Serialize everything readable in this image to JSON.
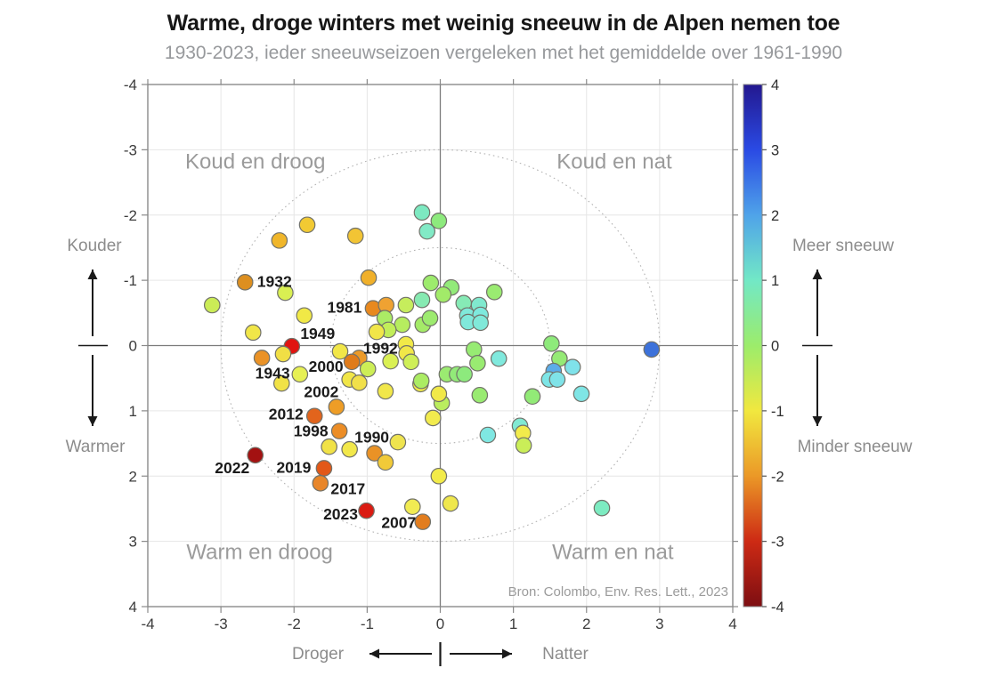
{
  "header": {
    "title": "Warme, droge winters met weinig sneeuw in de Alpen nemen toe",
    "subtitle": "1930-2023, ieder sneeuwseizoen vergeleken met het gemiddelde over 1961-1990"
  },
  "chart_data": {
    "type": "scatter",
    "title": "Warme, droge winters met weinig sneeuw in de Alpen nemen toe",
    "subtitle": "1930-2023, ieder sneeuwseizoen vergeleken met het gemiddelde over 1961-1990",
    "source": "Bron: Colombo, Env. Res. Lett., 2023",
    "x_range": [
      -4,
      4
    ],
    "y_range": [
      -4,
      4
    ],
    "y_axis_top_value": -4,
    "grid": true,
    "zero_lines": true,
    "reference_circle_radii": [
      1.5,
      3
    ],
    "x_ticks": [
      -4,
      -3,
      -2,
      -1,
      0,
      1,
      2,
      3,
      4
    ],
    "y_ticks": [
      -4,
      -3,
      -2,
      -1,
      0,
      1,
      2,
      3,
      4
    ],
    "quadrants": [
      {
        "text": "Koud en droog",
        "x": -2.53,
        "y": -2.82
      },
      {
        "text": "Koud en nat",
        "x": 2.38,
        "y": -2.82
      },
      {
        "text": "Warm en droog",
        "x": -2.47,
        "y": 3.16
      },
      {
        "text": "Warm en nat",
        "x": 2.36,
        "y": 3.16
      }
    ],
    "axis_annotations": {
      "y_top": "Kouder",
      "y_bottom": "Warmer",
      "x_left": "Droger",
      "x_right": "Natter",
      "cbar_top": "Meer sneeuw",
      "cbar_bottom": "Minder sneeuw"
    },
    "colorbar": {
      "ticks": [
        4,
        3,
        2,
        1,
        0,
        -1,
        -2,
        -3,
        -4
      ],
      "stops": [
        {
          "v": 4,
          "c": "#23188f"
        },
        {
          "v": 3,
          "c": "#2a4ae4"
        },
        {
          "v": 2,
          "c": "#4fa3e9"
        },
        {
          "v": 1,
          "c": "#72e8c6"
        },
        {
          "v": 0,
          "c": "#9cec6b"
        },
        {
          "v": -1,
          "c": "#f1e83f"
        },
        {
          "v": -2,
          "c": "#eb9827"
        },
        {
          "v": -3,
          "c": "#cd2a14"
        },
        {
          "v": -4,
          "c": "#7d0e12"
        }
      ]
    },
    "points": [
      {
        "x": -2.67,
        "y": -0.97,
        "c": "#dd8f1f",
        "label": "1932",
        "lx": 33,
        "ly": -1
      },
      {
        "x": -2.03,
        "y": 0.01,
        "c": "#e01410",
        "label": "1949",
        "lx": 29,
        "ly": -14
      },
      {
        "x": -2.44,
        "y": 0.19,
        "c": "#ea9226",
        "label": "1943",
        "lx": 12,
        "ly": 17
      },
      {
        "x": -0.92,
        "y": -0.57,
        "c": "#e8891f",
        "label": "1981",
        "lx": -32,
        "ly": -1
      },
      {
        "x": -1.11,
        "y": 0.19,
        "c": "#ec9a28",
        "label": "1992",
        "lx": 24,
        "ly": -11
      },
      {
        "x": -1.21,
        "y": 0.25,
        "c": "#e07b1a",
        "label": "2000",
        "lx": -29,
        "ly": 5
      },
      {
        "x": -1.42,
        "y": 0.94,
        "c": "#ee9d26",
        "label": "2002",
        "lx": -17,
        "ly": -17
      },
      {
        "x": -1.72,
        "y": 1.08,
        "c": "#e2641c",
        "label": "2012",
        "lx": -32,
        "ly": -2
      },
      {
        "x": -1.38,
        "y": 1.31,
        "c": "#ec8d26",
        "label": "1998",
        "lx": -32,
        "ly": 0
      },
      {
        "x": -0.9,
        "y": 1.65,
        "c": "#ea9226",
        "label": "1990",
        "lx": -3,
        "ly": -18
      },
      {
        "x": -2.53,
        "y": 1.68,
        "c": "#a31111",
        "label": "2022",
        "lx": -26,
        "ly": 14
      },
      {
        "x": -1.59,
        "y": 1.88,
        "c": "#e25818",
        "label": "2019",
        "lx": -34,
        "ly": -1
      },
      {
        "x": -1.64,
        "y": 2.11,
        "c": "#e8862a",
        "label": "2017",
        "lx": 31,
        "ly": 6
      },
      {
        "x": -1.01,
        "y": 2.53,
        "c": "#da1b12",
        "label": "2023",
        "lx": -29,
        "ly": 4
      },
      {
        "x": -0.24,
        "y": 2.7,
        "c": "#e27d1e",
        "label": "2007",
        "lx": -27,
        "ly": 1
      },
      {
        "x": -1.82,
        "y": -1.85,
        "c": "#f2ca33"
      },
      {
        "x": -2.2,
        "y": -1.61,
        "c": "#f0b62a"
      },
      {
        "x": -1.16,
        "y": -1.68,
        "c": "#f2c434"
      },
      {
        "x": -0.98,
        "y": -1.04,
        "c": "#f0b02a"
      },
      {
        "x": -2.12,
        "y": -0.81,
        "c": "#d9ef52"
      },
      {
        "x": -3.12,
        "y": -0.62,
        "c": "#cbec56"
      },
      {
        "x": -1.86,
        "y": -0.46,
        "c": "#f1e946"
      },
      {
        "x": -2.56,
        "y": -0.2,
        "c": "#f1e648"
      },
      {
        "x": -2.15,
        "y": 0.13,
        "c": "#f1df45"
      },
      {
        "x": -1.92,
        "y": 0.44,
        "c": "#e7f054"
      },
      {
        "x": -2.17,
        "y": 0.58,
        "c": "#f1e246"
      },
      {
        "x": -1.37,
        "y": 0.09,
        "c": "#f1e648"
      },
      {
        "x": -1.24,
        "y": 0.52,
        "c": "#f1e648"
      },
      {
        "x": -1.11,
        "y": 0.57,
        "c": "#f1e04a"
      },
      {
        "x": -0.99,
        "y": 0.36,
        "c": "#cdee56"
      },
      {
        "x": -0.75,
        "y": 0.7,
        "c": "#f1e74a"
      },
      {
        "x": -0.27,
        "y": 0.59,
        "c": "#f1ea48"
      },
      {
        "x": -0.1,
        "y": 1.11,
        "c": "#f2eb4e"
      },
      {
        "x": -1.52,
        "y": 1.55,
        "c": "#f1e247"
      },
      {
        "x": -1.24,
        "y": 1.59,
        "c": "#f2e84b"
      },
      {
        "x": -0.75,
        "y": 1.79,
        "c": "#f1ca38"
      },
      {
        "x": -0.58,
        "y": 1.48,
        "c": "#efe44f"
      },
      {
        "x": -0.02,
        "y": 2.0,
        "c": "#f2eb49"
      },
      {
        "x": -0.38,
        "y": 2.47,
        "c": "#f1eb52"
      },
      {
        "x": 0.14,
        "y": 2.42,
        "c": "#efe74d"
      },
      {
        "x": 2.21,
        "y": 2.49,
        "c": "#7debc1"
      },
      {
        "x": 2.89,
        "y": 0.06,
        "c": "#3d72da"
      },
      {
        "x": -0.25,
        "y": -2.04,
        "c": "#7de9c1"
      },
      {
        "x": -0.02,
        "y": -1.91,
        "c": "#8dea7d"
      },
      {
        "x": -0.18,
        "y": -1.75,
        "c": "#82eac6"
      },
      {
        "x": -0.74,
        "y": -0.62,
        "c": "#efa232"
      },
      {
        "x": -0.47,
        "y": -0.62,
        "c": "#c6ed5c"
      },
      {
        "x": -0.25,
        "y": -0.7,
        "c": "#86eab2"
      },
      {
        "x": -0.13,
        "y": -0.96,
        "c": "#9deb6d"
      },
      {
        "x": 0.15,
        "y": -0.89,
        "c": "#92ea79"
      },
      {
        "x": 0.04,
        "y": -0.78,
        "c": "#a2eb69"
      },
      {
        "x": 0.32,
        "y": -0.65,
        "c": "#86eab6"
      },
      {
        "x": 0.53,
        "y": -0.62,
        "c": "#80e9ce"
      },
      {
        "x": 0.74,
        "y": -0.82,
        "c": "#9aeb71"
      },
      {
        "x": -0.76,
        "y": -0.42,
        "c": "#abec65"
      },
      {
        "x": -0.52,
        "y": -0.32,
        "c": "#b6ed5f"
      },
      {
        "x": -0.24,
        "y": -0.32,
        "c": "#a4eb68"
      },
      {
        "x": -0.14,
        "y": -0.42,
        "c": "#9deb6f"
      },
      {
        "x": -0.71,
        "y": -0.24,
        "c": "#c2ee59"
      },
      {
        "x": -0.87,
        "y": -0.21,
        "c": "#f1e648"
      },
      {
        "x": -0.47,
        "y": -0.02,
        "c": "#f1e948"
      },
      {
        "x": -0.46,
        "y": 0.12,
        "c": "#f1e748"
      },
      {
        "x": -0.68,
        "y": 0.24,
        "c": "#daf053"
      },
      {
        "x": -0.4,
        "y": 0.25,
        "c": "#cfef57"
      },
      {
        "x": -0.26,
        "y": 0.54,
        "c": "#abec63"
      },
      {
        "x": 0.37,
        "y": -0.46,
        "c": "#80e9da"
      },
      {
        "x": 0.55,
        "y": -0.47,
        "c": "#7ee9dd"
      },
      {
        "x": 0.38,
        "y": -0.36,
        "c": "#80e9db"
      },
      {
        "x": 0.55,
        "y": -0.35,
        "c": "#80e9d9"
      },
      {
        "x": 0.46,
        "y": 0.06,
        "c": "#97eb73"
      },
      {
        "x": 0.51,
        "y": 0.27,
        "c": "#99eb71"
      },
      {
        "x": 0.8,
        "y": 0.2,
        "c": "#80e9dd"
      },
      {
        "x": 0.09,
        "y": 0.44,
        "c": "#9beb71"
      },
      {
        "x": 0.23,
        "y": 0.44,
        "c": "#92ea79"
      },
      {
        "x": 0.33,
        "y": 0.44,
        "c": "#8dea7d"
      },
      {
        "x": 1.52,
        "y": -0.03,
        "c": "#8eea7b"
      },
      {
        "x": 1.63,
        "y": 0.2,
        "c": "#95ea75"
      },
      {
        "x": 1.81,
        "y": 0.33,
        "c": "#7fe2ea"
      },
      {
        "x": 1.55,
        "y": 0.39,
        "c": "#5cace9"
      },
      {
        "x": 1.49,
        "y": 0.52,
        "c": "#7de5e6"
      },
      {
        "x": 1.6,
        "y": 0.52,
        "c": "#7fe3e8"
      },
      {
        "x": 0.54,
        "y": 0.76,
        "c": "#99eb71"
      },
      {
        "x": 0.65,
        "y": 1.37,
        "c": "#7fe7e2"
      },
      {
        "x": 1.09,
        "y": 1.23,
        "c": "#81e9d2"
      },
      {
        "x": 1.13,
        "y": 1.34,
        "c": "#f2eb4b"
      },
      {
        "x": 1.14,
        "y": 1.53,
        "c": "#caee58"
      },
      {
        "x": 1.26,
        "y": 0.78,
        "c": "#92ea77"
      },
      {
        "x": 1.93,
        "y": 0.74,
        "c": "#7fe5e5"
      },
      {
        "x": 0.02,
        "y": 0.88,
        "c": "#baed5e"
      },
      {
        "x": -0.02,
        "y": 0.74,
        "c": "#f1e948"
      }
    ]
  }
}
